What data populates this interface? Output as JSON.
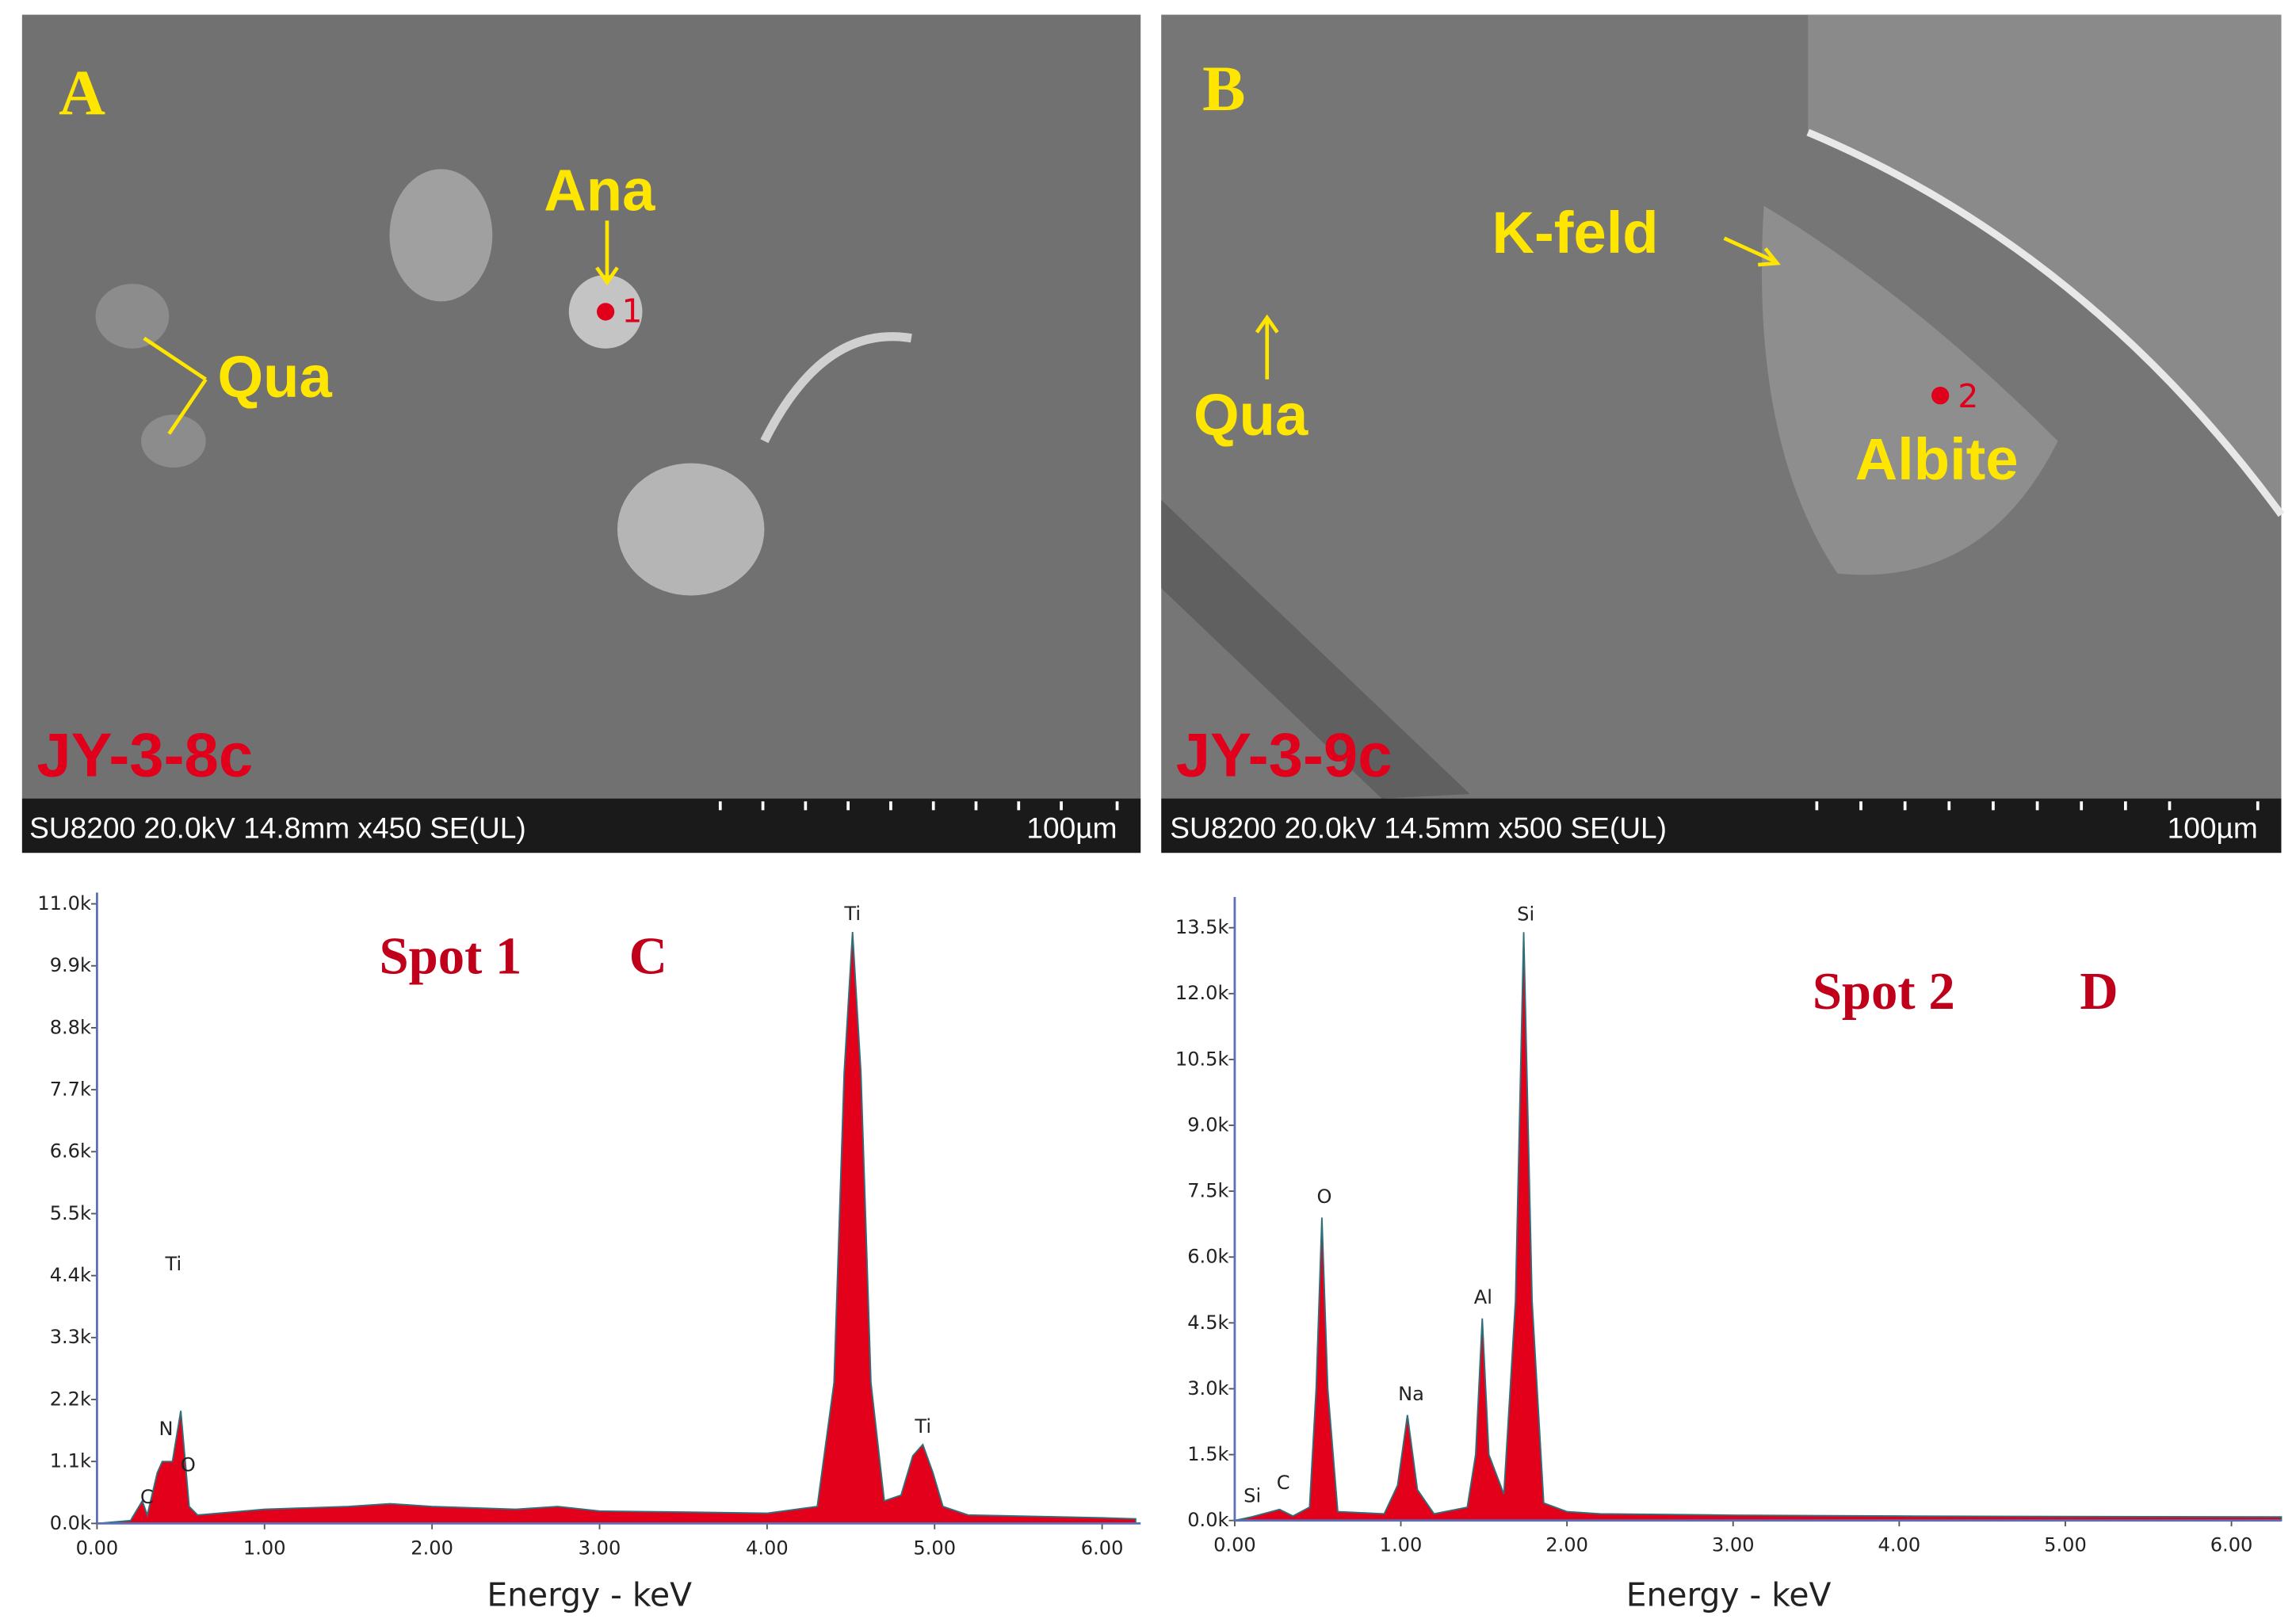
{
  "panels": [
    {
      "letter": "A",
      "sample": "JY-3-8c",
      "info": "SU8200 20.0kV 14.8mm x450 SE(UL)",
      "scale": "100µm",
      "labels": [
        "Ana",
        "Qua"
      ],
      "spot": "1"
    },
    {
      "letter": "B",
      "sample": "JY-3-9c",
      "info": "SU8200 20.0kV 14.5mm x500 SE(UL)",
      "scale": "100µm",
      "labels": [
        "K-feld",
        "Qua",
        "Albite"
      ],
      "spot": "2"
    }
  ],
  "chart_data": [
    {
      "type": "area",
      "title": "Spot 1",
      "panel_letter": "C",
      "x_label": "Energy - keV",
      "color": "#e3001b",
      "x": [
        0,
        0.2,
        0.27,
        0.3,
        0.36,
        0.39,
        0.45,
        0.5,
        0.55,
        0.6,
        1.0,
        1.5,
        1.75,
        2.0,
        2.5,
        2.75,
        3.0,
        3.5,
        4.0,
        4.3,
        4.4,
        4.46,
        4.51,
        4.56,
        4.62,
        4.7,
        4.8,
        4.87,
        4.93,
        4.99,
        5.05,
        5.2,
        6.0,
        6.2
      ],
      "values": [
        0,
        50,
        400,
        150,
        900,
        1100,
        1100,
        2000,
        300,
        150,
        250,
        300,
        350,
        300,
        250,
        300,
        220,
        200,
        180,
        300,
        2500,
        8000,
        10500,
        8000,
        2500,
        400,
        500,
        1200,
        1400,
        900,
        300,
        150,
        100,
        80
      ],
      "peak_labels": [
        "C",
        "N",
        "Ti",
        "O",
        "Ti",
        "Ti"
      ],
      "xlim": [
        0,
        6.23
      ],
      "ylim": [
        0,
        11200
      ],
      "xticks": [
        {
          "value": 0,
          "label": "0.00"
        },
        {
          "value": 1,
          "label": "1.00"
        },
        {
          "value": 2,
          "label": "2.00"
        },
        {
          "value": 3,
          "label": "3.00"
        },
        {
          "value": 4,
          "label": "4.00"
        },
        {
          "value": 5,
          "label": "5.00"
        },
        {
          "value": 6,
          "label": "6.00"
        }
      ],
      "yticks": [
        {
          "value": 0,
          "label": "0.0k"
        },
        {
          "value": 1100,
          "label": "1.1k"
        },
        {
          "value": 2200,
          "label": "2.2k"
        },
        {
          "value": 3300,
          "label": "3.3k"
        },
        {
          "value": 4400,
          "label": "4.4k"
        },
        {
          "value": 5500,
          "label": "5.5k"
        },
        {
          "value": 6600,
          "label": "6.6k"
        },
        {
          "value": 7700,
          "label": "7.7k"
        },
        {
          "value": 8800,
          "label": "8.8k"
        },
        {
          "value": 9900,
          "label": "9.9k"
        },
        {
          "value": 11000,
          "label": "11.0k"
        }
      ]
    },
    {
      "type": "area",
      "title": "Spot 2",
      "panel_letter": "D",
      "x_label": "Energy - keV",
      "color": "#e3001b",
      "x": [
        0,
        0.1,
        0.27,
        0.35,
        0.45,
        0.49,
        0.525,
        0.56,
        0.62,
        0.9,
        0.98,
        1.04,
        1.1,
        1.2,
        1.4,
        1.45,
        1.49,
        1.53,
        1.62,
        1.69,
        1.74,
        1.79,
        1.86,
        2.0,
        2.2,
        3.0,
        4.0,
        5.0,
        6.3
      ],
      "values": [
        0,
        80,
        250,
        100,
        300,
        3000,
        6900,
        3000,
        200,
        150,
        800,
        2400,
        700,
        150,
        300,
        1500,
        4600,
        1500,
        600,
        5000,
        13400,
        5000,
        400,
        200,
        150,
        120,
        100,
        90,
        80
      ],
      "peak_labels": [
        "Si",
        "C",
        "O",
        "Na",
        "Al",
        "Si"
      ],
      "xlim": [
        0,
        6.3
      ],
      "ylim": [
        0,
        14200
      ],
      "xticks": [
        {
          "value": 0,
          "label": "0.00"
        },
        {
          "value": 1,
          "label": "1.00"
        },
        {
          "value": 2,
          "label": "2.00"
        },
        {
          "value": 3,
          "label": "3.00"
        },
        {
          "value": 4,
          "label": "4.00"
        },
        {
          "value": 5,
          "label": "5.00"
        },
        {
          "value": 6,
          "label": "6.00"
        }
      ],
      "yticks": [
        {
          "value": 0,
          "label": "0.0k"
        },
        {
          "value": 1500,
          "label": "1.5k"
        },
        {
          "value": 3000,
          "label": "3.0k"
        },
        {
          "value": 4500,
          "label": "4.5k"
        },
        {
          "value": 6000,
          "label": "6.0k"
        },
        {
          "value": 7500,
          "label": "7.5k"
        },
        {
          "value": 9000,
          "label": "9.0k"
        },
        {
          "value": 10500,
          "label": "10.5k"
        },
        {
          "value": 12000,
          "label": "12.0k"
        },
        {
          "value": 13500,
          "label": "13.5k"
        }
      ]
    }
  ]
}
